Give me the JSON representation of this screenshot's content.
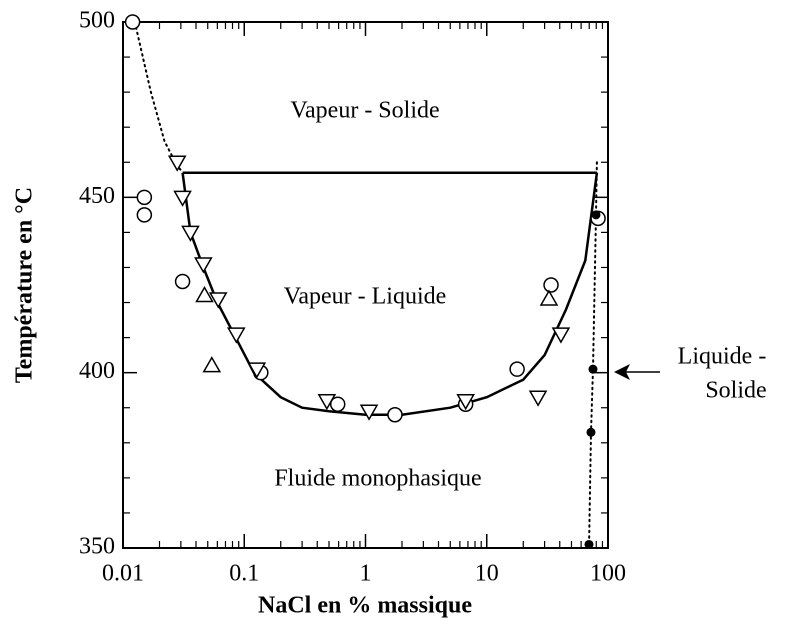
{
  "chart_data": {
    "type": "scatter",
    "xlabel": "NaCl en % massique",
    "ylabel": "Température en °C",
    "xscale": "log",
    "xlim": [
      0.01,
      100
    ],
    "ylim": [
      350,
      500
    ],
    "xticks": [
      0.01,
      0.1,
      1,
      10,
      100
    ],
    "yticks": [
      350,
      400,
      450,
      500
    ],
    "x_minor_ticks": [
      0.02,
      0.03,
      0.04,
      0.05,
      0.06,
      0.07,
      0.08,
      0.09,
      0.2,
      0.3,
      0.4,
      0.5,
      0.6,
      0.7,
      0.8,
      0.9,
      2,
      3,
      4,
      5,
      6,
      7,
      8,
      9,
      20,
      30,
      40,
      50,
      60,
      70,
      80,
      90
    ],
    "y_minor_ticks": [
      360,
      370,
      380,
      390,
      410,
      420,
      430,
      440,
      460,
      470,
      480,
      490
    ],
    "color": "#000000",
    "annotations": [
      "Vapeur - Solide",
      "Vapeur - Liquide",
      "Fluide monophasique",
      "Liquide -",
      "Solide"
    ],
    "series": [
      {
        "marker": "circle",
        "x": [
          0.012,
          0.015,
          0.015,
          0.031,
          0.137,
          0.59,
          1.75,
          6.7,
          17.8,
          33.9,
          82.8
        ],
        "values": [
          500,
          450,
          445,
          426,
          400,
          391,
          388,
          391,
          401,
          425,
          444
        ]
      },
      {
        "marker": "triangle-down",
        "x": [
          0.028,
          0.031,
          0.036,
          0.046,
          0.061,
          0.086,
          0.127,
          0.48,
          1.07,
          6.7,
          26.5,
          40.9
        ],
        "values": [
          460,
          450,
          440,
          431,
          421,
          411,
          401,
          392,
          389,
          392,
          393,
          411
        ]
      },
      {
        "marker": "triangle-up",
        "x": [
          0.047,
          0.054,
          32.6
        ],
        "values": [
          422,
          402,
          421
        ]
      },
      {
        "marker": "dot",
        "x": [
          79.6,
          75.2,
          72.4,
          69.7
        ],
        "values": [
          445,
          401,
          383,
          351
        ]
      }
    ],
    "lines": [
      {
        "style": "solid",
        "x": [
          0.031,
          0.036,
          0.046,
          0.06,
          0.085,
          0.12,
          0.2,
          0.3,
          0.5,
          1,
          2,
          5,
          10,
          20,
          30,
          45,
          65,
          81
        ],
        "values": [
          457,
          440,
          430,
          420,
          410,
          400,
          393,
          390,
          389,
          388,
          388,
          390,
          393,
          398,
          405,
          418,
          432,
          457
        ]
      },
      {
        "style": "solid",
        "x": [
          0.031,
          81
        ],
        "values": [
          457,
          457
        ]
      },
      {
        "style": "dotted",
        "x": [
          0.0125,
          0.017,
          0.022,
          0.027,
          0.031
        ],
        "values": [
          500,
          480,
          466,
          460,
          457
        ]
      },
      {
        "style": "dotted",
        "x": [
          81,
          79.6,
          75.2,
          72.4,
          69.7
        ],
        "values": [
          460,
          445,
          401,
          383,
          350
        ]
      }
    ]
  }
}
